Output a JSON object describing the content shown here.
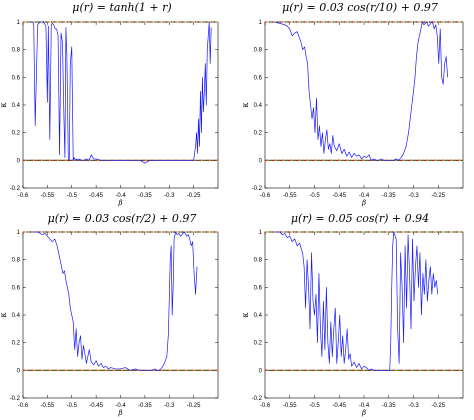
{
  "colors": {
    "data_line": "#1a1aff",
    "ref_red": "#d62728",
    "ref_orange": "#ff8c00",
    "ref_green": "#2ca02c",
    "ref_black": "#000000",
    "axis": "#000000"
  },
  "chart_data": [
    {
      "type": "line",
      "title": "μ(r) = tanh(1 + r)",
      "xlabel": "β",
      "ylabel": "κ",
      "xlim": [
        -0.6,
        -0.2
      ],
      "ylim": [
        -0.2,
        1.0
      ],
      "xticks": [
        -0.6,
        -0.55,
        -0.5,
        -0.45,
        -0.4,
        -0.35,
        -0.3,
        -0.25
      ],
      "xticklabels": [
        "-0.6",
        "-0.55",
        "-0.5",
        "-0.45",
        "-0.4",
        "-0.35",
        "-0.3",
        "-0.25"
      ],
      "yticks": [
        -0.2,
        0,
        0.2,
        0.4,
        0.6,
        0.8,
        1
      ],
      "yticklabels": [
        "-0.2",
        "0",
        "0.2",
        "0.4",
        "0.6",
        "0.8",
        "1"
      ],
      "reference_lines": [
        1,
        0
      ],
      "series": [
        {
          "x": [
            -0.585,
            -0.58,
            -0.578,
            -0.575,
            -0.57,
            -0.565,
            -0.56,
            -0.556,
            -0.553,
            -0.55,
            -0.548,
            -0.545,
            -0.542,
            -0.54,
            -0.537,
            -0.534,
            -0.531,
            -0.528,
            -0.525,
            -0.522,
            -0.519,
            -0.516,
            -0.514,
            -0.512,
            -0.51,
            -0.507,
            -0.505,
            -0.503,
            -0.5,
            -0.497,
            -0.495,
            -0.492,
            -0.49,
            -0.487,
            -0.485,
            -0.48,
            -0.475,
            -0.47,
            -0.465,
            -0.462,
            -0.46,
            -0.455,
            -0.45,
            -0.44,
            -0.43,
            -0.42,
            -0.41,
            -0.4,
            -0.39,
            -0.38,
            -0.37,
            -0.36,
            -0.355,
            -0.35,
            -0.345,
            -0.34,
            -0.33,
            -0.32,
            -0.31,
            -0.3,
            -0.29,
            -0.28,
            -0.27,
            -0.26,
            -0.25,
            -0.248,
            -0.246,
            -0.244,
            -0.242,
            -0.24,
            -0.238,
            -0.236,
            -0.234,
            -0.232,
            -0.23,
            -0.228,
            -0.226,
            -0.224,
            -0.222,
            -0.22,
            -0.218,
            -0.216,
            -0.214
          ],
          "y": [
            1.0,
            1.0,
            0.98,
            0.25,
            0.98,
            1.0,
            1.0,
            0.99,
            0.97,
            0.42,
            0.97,
            0.15,
            0.98,
            0.99,
            0.98,
            0.95,
            0.95,
            0.9,
            0.04,
            0.92,
            0.85,
            0.3,
            0.02,
            0.96,
            0.75,
            0.0,
            0.0,
            0.7,
            0.82,
            0.0,
            0.02,
            0.0,
            0.01,
            0.0,
            0.01,
            0.0,
            0.0,
            0.01,
            0.0,
            0.02,
            0.04,
            0.01,
            0.01,
            0.0,
            0.0,
            0.0,
            0.0,
            0.0,
            0.0,
            0.0,
            0.0,
            0.0,
            -0.01,
            -0.02,
            -0.01,
            0.0,
            0.0,
            0.0,
            0.0,
            0.0,
            0.0,
            0.0,
            0.0,
            0.0,
            0.0,
            0.05,
            0.1,
            0.2,
            0.05,
            0.3,
            0.1,
            0.5,
            0.2,
            0.6,
            0.35,
            0.5,
            0.7,
            0.4,
            0.8,
            0.9,
            1.0,
            0.7,
            0.96
          ]
        }
      ]
    },
    {
      "type": "line",
      "title": "μ(r) = 0.03 cos(r/10) + 0.97",
      "xlabel": "β",
      "ylabel": "κ",
      "xlim": [
        -0.6,
        -0.2
      ],
      "ylim": [
        -0.2,
        1.0
      ],
      "xticks": [
        -0.6,
        -0.55,
        -0.5,
        -0.45,
        -0.4,
        -0.35,
        -0.3,
        -0.25
      ],
      "xticklabels": [
        "-0.6",
        "-0.55",
        "-0.5",
        "-0.45",
        "-0.4",
        "-0.35",
        "-0.3",
        "-0.25"
      ],
      "yticks": [
        -0.2,
        0,
        0.2,
        0.4,
        0.6,
        0.8,
        1
      ],
      "yticklabels": [
        "-0.2",
        "0",
        "0.2",
        "0.4",
        "0.6",
        "0.8",
        "1"
      ],
      "reference_lines": [
        1,
        0
      ],
      "series": [
        {
          "x": [
            -0.58,
            -0.57,
            -0.56,
            -0.555,
            -0.55,
            -0.545,
            -0.54,
            -0.535,
            -0.53,
            -0.527,
            -0.524,
            -0.52,
            -0.517,
            -0.514,
            -0.511,
            -0.508,
            -0.505,
            -0.502,
            -0.499,
            -0.496,
            -0.493,
            -0.49,
            -0.487,
            -0.484,
            -0.481,
            -0.478,
            -0.475,
            -0.472,
            -0.469,
            -0.466,
            -0.463,
            -0.46,
            -0.455,
            -0.45,
            -0.445,
            -0.44,
            -0.435,
            -0.43,
            -0.425,
            -0.42,
            -0.415,
            -0.41,
            -0.405,
            -0.4,
            -0.395,
            -0.39,
            -0.385,
            -0.38,
            -0.375,
            -0.37,
            -0.365,
            -0.36,
            -0.355,
            -0.35,
            -0.345,
            -0.34,
            -0.335,
            -0.33,
            -0.325,
            -0.32,
            -0.315,
            -0.31,
            -0.305,
            -0.3,
            -0.297,
            -0.294,
            -0.291,
            -0.288,
            -0.285,
            -0.282,
            -0.279,
            -0.276,
            -0.273,
            -0.27,
            -0.267,
            -0.264,
            -0.261,
            -0.258,
            -0.255,
            -0.252,
            -0.249,
            -0.246,
            -0.243,
            -0.24,
            -0.237,
            -0.234,
            -0.231
          ],
          "y": [
            1.0,
            0.99,
            0.98,
            0.97,
            0.95,
            0.9,
            0.92,
            0.93,
            0.88,
            0.85,
            0.8,
            0.82,
            0.75,
            0.7,
            0.5,
            0.4,
            0.3,
            0.38,
            0.2,
            0.45,
            0.15,
            0.25,
            0.1,
            0.2,
            0.05,
            0.15,
            0.22,
            0.08,
            0.12,
            0.05,
            0.18,
            0.1,
            0.07,
            0.12,
            0.05,
            0.08,
            0.03,
            0.06,
            0.02,
            0.05,
            0.03,
            0.04,
            0.01,
            0.03,
            0.02,
            0.04,
            0.0,
            0.01,
            0.0,
            0.0,
            0.01,
            0.0,
            0.0,
            0.0,
            0.0,
            0.0,
            0.01,
            0.0,
            0.02,
            0.05,
            0.1,
            0.2,
            0.35,
            0.5,
            0.6,
            0.75,
            0.85,
            0.9,
            0.95,
            1.0,
            0.98,
            0.99,
            1.0,
            0.97,
            0.98,
            1.0,
            0.99,
            0.95,
            0.98,
            0.9,
            0.7,
            0.95,
            0.6,
            0.55,
            0.7,
            0.75,
            0.6
          ]
        }
      ]
    },
    {
      "type": "line",
      "title": "μ(r) = 0.03 cos(r/2) + 0.97",
      "xlabel": "β",
      "ylabel": "κ",
      "xlim": [
        -0.6,
        -0.2
      ],
      "ylim": [
        -0.2,
        1.0
      ],
      "xticks": [
        -0.6,
        -0.55,
        -0.5,
        -0.45,
        -0.4,
        -0.35,
        -0.3,
        -0.25
      ],
      "xticklabels": [
        "-0.6",
        "-0.55",
        "-0.5",
        "-0.45",
        "-0.4",
        "-0.35",
        "-0.3",
        "-0.25"
      ],
      "yticks": [
        -0.2,
        0,
        0.2,
        0.4,
        0.6,
        0.8,
        1
      ],
      "yticklabels": [
        "-0.2",
        "0",
        "0.2",
        "0.4",
        "0.6",
        "0.8",
        "1"
      ],
      "reference_lines": [
        1,
        0
      ],
      "series": [
        {
          "x": [
            -0.58,
            -0.57,
            -0.56,
            -0.555,
            -0.55,
            -0.545,
            -0.54,
            -0.535,
            -0.53,
            -0.527,
            -0.524,
            -0.521,
            -0.518,
            -0.515,
            -0.512,
            -0.509,
            -0.506,
            -0.503,
            -0.5,
            -0.497,
            -0.494,
            -0.491,
            -0.488,
            -0.485,
            -0.482,
            -0.479,
            -0.476,
            -0.473,
            -0.47,
            -0.467,
            -0.464,
            -0.46,
            -0.455,
            -0.45,
            -0.445,
            -0.44,
            -0.435,
            -0.43,
            -0.425,
            -0.42,
            -0.41,
            -0.4,
            -0.39,
            -0.38,
            -0.37,
            -0.36,
            -0.35,
            -0.345,
            -0.34,
            -0.335,
            -0.33,
            -0.325,
            -0.32,
            -0.315,
            -0.31,
            -0.305,
            -0.302,
            -0.3,
            -0.298,
            -0.296,
            -0.294,
            -0.292,
            -0.29,
            -0.287,
            -0.284,
            -0.28,
            -0.277,
            -0.274,
            -0.27,
            -0.267,
            -0.264,
            -0.261,
            -0.258,
            -0.255,
            -0.252,
            -0.249,
            -0.246,
            -0.243
          ],
          "y": [
            1.0,
            1.0,
            0.98,
            0.99,
            0.97,
            0.95,
            0.93,
            0.95,
            0.9,
            0.85,
            0.8,
            0.75,
            0.7,
            0.72,
            0.65,
            0.6,
            0.55,
            0.45,
            0.4,
            0.35,
            0.15,
            0.3,
            0.1,
            0.2,
            0.25,
            0.08,
            0.18,
            0.12,
            0.05,
            0.1,
            0.15,
            0.06,
            0.04,
            0.07,
            0.03,
            0.05,
            0.02,
            0.03,
            0.01,
            0.02,
            0.01,
            0.01,
            0.02,
            0.0,
            0.01,
            0.0,
            0.0,
            0.0,
            0.0,
            0.0,
            0.01,
            0.0,
            0.0,
            0.02,
            0.05,
            0.1,
            0.25,
            0.5,
            0.8,
            0.9,
            0.4,
            0.6,
            0.95,
            1.0,
            0.98,
            0.99,
            0.97,
            0.98,
            1.0,
            0.99,
            0.97,
            0.98,
            0.95,
            0.9,
            0.93,
            0.7,
            0.55,
            0.75
          ]
        }
      ]
    },
    {
      "type": "line",
      "title": "μ(r) = 0.05 cos(r) + 0.94",
      "xlabel": "β",
      "ylabel": "κ",
      "xlim": [
        -0.6,
        -0.2
      ],
      "ylim": [
        -0.2,
        1.0
      ],
      "xticks": [
        -0.6,
        -0.55,
        -0.5,
        -0.45,
        -0.4,
        -0.35,
        -0.3,
        -0.25
      ],
      "xticklabels": [
        "-0.6",
        "-0.55",
        "-0.5",
        "-0.45",
        "-0.4",
        "-0.35",
        "-0.3",
        "-0.25"
      ],
      "yticks": [
        -0.2,
        0,
        0.2,
        0.4,
        0.6,
        0.8,
        1
      ],
      "yticklabels": [
        "-0.2",
        "0",
        "0.2",
        "0.4",
        "0.6",
        "0.8",
        "1"
      ],
      "reference_lines": [
        1,
        0
      ],
      "series": [
        {
          "x": [
            -0.58,
            -0.57,
            -0.565,
            -0.56,
            -0.555,
            -0.55,
            -0.545,
            -0.54,
            -0.535,
            -0.53,
            -0.527,
            -0.524,
            -0.521,
            -0.518,
            -0.515,
            -0.512,
            -0.509,
            -0.506,
            -0.503,
            -0.5,
            -0.497,
            -0.494,
            -0.491,
            -0.488,
            -0.485,
            -0.482,
            -0.479,
            -0.476,
            -0.473,
            -0.47,
            -0.467,
            -0.464,
            -0.461,
            -0.458,
            -0.455,
            -0.452,
            -0.449,
            -0.446,
            -0.443,
            -0.44,
            -0.437,
            -0.434,
            -0.431,
            -0.428,
            -0.425,
            -0.42,
            -0.415,
            -0.41,
            -0.405,
            -0.4,
            -0.395,
            -0.39,
            -0.385,
            -0.38,
            -0.375,
            -0.37,
            -0.365,
            -0.36,
            -0.355,
            -0.352,
            -0.35,
            -0.348,
            -0.346,
            -0.344,
            -0.342,
            -0.34,
            -0.338,
            -0.335,
            -0.332,
            -0.329,
            -0.326,
            -0.323,
            -0.32,
            -0.317,
            -0.314,
            -0.311,
            -0.308,
            -0.305,
            -0.302,
            -0.299,
            -0.296,
            -0.293,
            -0.29,
            -0.287,
            -0.284,
            -0.281,
            -0.278,
            -0.275,
            -0.272,
            -0.269,
            -0.266,
            -0.263,
            -0.26,
            -0.257,
            -0.254,
            -0.251
          ],
          "y": [
            1.0,
            1.0,
            0.98,
            0.99,
            0.96,
            0.97,
            0.93,
            0.95,
            0.9,
            0.92,
            0.88,
            0.85,
            0.75,
            0.45,
            0.8,
            0.6,
            0.3,
            0.85,
            0.5,
            0.4,
            0.55,
            0.2,
            0.7,
            0.3,
            0.1,
            0.5,
            0.15,
            0.6,
            0.2,
            0.05,
            0.35,
            0.1,
            0.3,
            0.45,
            0.05,
            0.2,
            0.4,
            0.1,
            0.25,
            0.05,
            0.15,
            0.3,
            0.08,
            0.12,
            0.03,
            0.06,
            0.02,
            0.05,
            0.01,
            0.03,
            0.02,
            0.0,
            0.01,
            0.0,
            0.0,
            0.0,
            0.0,
            0.0,
            0.0,
            0.0,
            0.0,
            0.0,
            0.2,
            0.6,
            0.9,
            1.0,
            0.98,
            0.95,
            0.3,
            0.05,
            0.85,
            0.6,
            0.2,
            0.9,
            0.45,
            0.98,
            0.7,
            0.3,
            0.95,
            0.5,
            0.75,
            0.9,
            0.6,
            0.85,
            0.4,
            0.7,
            0.55,
            0.8,
            0.5,
            0.65,
            0.75,
            0.55,
            0.7,
            0.6,
            0.65,
            0.55
          ]
        }
      ]
    }
  ]
}
